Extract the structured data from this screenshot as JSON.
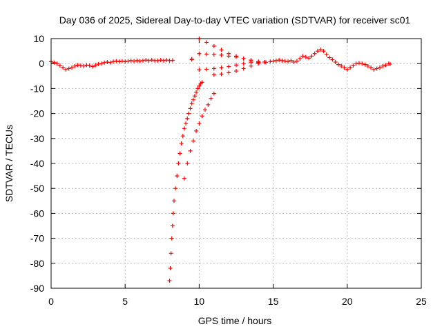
{
  "chart_data": {
    "type": "scatter",
    "title": "Day 036 of 2025, Sidereal Day-to-day VTEC variation (SDTVAR) for receiver sc01",
    "xlabel": "GPS time / hours",
    "ylabel": "SDTVAR / TECUs",
    "xlim": [
      0,
      25
    ],
    "ylim": [
      -90,
      10
    ],
    "x_ticks": [
      0,
      5,
      10,
      15,
      20,
      25
    ],
    "y_ticks": [
      10,
      0,
      -10,
      -20,
      -30,
      -40,
      -50,
      -60,
      -70,
      -80,
      -90
    ],
    "x_tick_labels": [
      "0",
      "5",
      "10",
      "15",
      "20",
      "25"
    ],
    "y_tick_labels": [
      "10",
      "0",
      "-10",
      "-20",
      "-30",
      "-40",
      "-50",
      "-60",
      "-70",
      "-80",
      "-90"
    ],
    "grid": true,
    "marker": "+",
    "marker_color": "#ff0000",
    "series": [
      {
        "name": "SDTVAR",
        "points": [
          [
            0.0,
            0.8
          ],
          [
            0.2,
            0.4
          ],
          [
            0.4,
            0.0
          ],
          [
            0.6,
            -0.8
          ],
          [
            0.8,
            -1.6
          ],
          [
            1.0,
            -2.4
          ],
          [
            1.2,
            -2.0
          ],
          [
            1.4,
            -1.6
          ],
          [
            1.6,
            -1.0
          ],
          [
            1.8,
            -0.6
          ],
          [
            2.0,
            -0.8
          ],
          [
            2.2,
            -1.0
          ],
          [
            2.4,
            -0.6
          ],
          [
            2.6,
            -0.8
          ],
          [
            2.8,
            -1.2
          ],
          [
            3.0,
            -0.6
          ],
          [
            3.2,
            -0.2
          ],
          [
            3.4,
            0.0
          ],
          [
            3.6,
            0.4
          ],
          [
            3.8,
            0.6
          ],
          [
            4.0,
            0.4
          ],
          [
            4.2,
            0.8
          ],
          [
            4.4,
            1.0
          ],
          [
            4.6,
            0.8
          ],
          [
            4.8,
            1.0
          ],
          [
            5.0,
            0.8
          ],
          [
            5.2,
            1.0
          ],
          [
            5.4,
            1.2
          ],
          [
            5.6,
            1.0
          ],
          [
            5.8,
            1.2
          ],
          [
            6.0,
            1.0
          ],
          [
            6.2,
            1.2
          ],
          [
            6.4,
            1.4
          ],
          [
            6.6,
            1.2
          ],
          [
            6.8,
            1.4
          ],
          [
            7.0,
            1.2
          ],
          [
            7.2,
            1.2
          ],
          [
            7.4,
            1.4
          ],
          [
            7.6,
            1.2
          ],
          [
            7.8,
            1.4
          ],
          [
            8.0,
            1.2
          ],
          [
            8.2,
            1.3
          ],
          [
            9.5,
            1.6
          ],
          [
            9.5,
            1.8
          ],
          [
            8.0,
            -87.0
          ],
          [
            8.05,
            -82.0
          ],
          [
            8.1,
            -76.0
          ],
          [
            8.15,
            -70.0
          ],
          [
            8.2,
            -65.0
          ],
          [
            8.25,
            -60.0
          ],
          [
            8.3,
            -55.0
          ],
          [
            8.4,
            -50.0
          ],
          [
            8.5,
            -45.0
          ],
          [
            8.6,
            -40.0
          ],
          [
            8.7,
            -36.0
          ],
          [
            8.8,
            -32.0
          ],
          [
            8.9,
            -29.0
          ],
          [
            9.0,
            -26.0
          ],
          [
            9.1,
            -24.0
          ],
          [
            9.2,
            -22.0
          ],
          [
            9.3,
            -20.0
          ],
          [
            9.4,
            -18.0
          ],
          [
            9.5,
            -16.0
          ],
          [
            9.6,
            -14.5
          ],
          [
            9.7,
            -13.0
          ],
          [
            9.8,
            -11.5
          ],
          [
            9.9,
            -10.0
          ],
          [
            10.0,
            -9.0
          ],
          [
            10.1,
            -8.0
          ],
          [
            10.2,
            -7.5
          ],
          [
            9.0,
            -46.0
          ],
          [
            9.2,
            -40.0
          ],
          [
            9.4,
            -35.0
          ],
          [
            9.6,
            -31.0
          ],
          [
            9.8,
            -27.0
          ],
          [
            10.0,
            -24.0
          ],
          [
            10.2,
            -21.0
          ],
          [
            10.4,
            -18.5
          ],
          [
            10.6,
            -16.5
          ],
          [
            10.8,
            -14.0
          ],
          [
            11.0,
            -12.0
          ],
          [
            10.0,
            10.0
          ],
          [
            10.5,
            8.5
          ],
          [
            11.0,
            7.0
          ],
          [
            11.5,
            5.5
          ],
          [
            12.0,
            4.0
          ],
          [
            12.5,
            3.0
          ],
          [
            13.0,
            2.0
          ],
          [
            13.5,
            1.0
          ],
          [
            14.0,
            0.5
          ],
          [
            10.0,
            4.0
          ],
          [
            10.5,
            3.8
          ],
          [
            11.0,
            3.6
          ],
          [
            11.5,
            3.4
          ],
          [
            12.0,
            3.0
          ],
          [
            12.5,
            2.6
          ],
          [
            13.0,
            2.0
          ],
          [
            13.5,
            1.4
          ],
          [
            14.0,
            0.8
          ],
          [
            10.0,
            -2.5
          ],
          [
            10.5,
            -2.3
          ],
          [
            11.0,
            -2.0
          ],
          [
            11.5,
            -1.6
          ],
          [
            12.0,
            -1.2
          ],
          [
            12.5,
            -0.6
          ],
          [
            13.0,
            0.0
          ],
          [
            13.5,
            0.4
          ],
          [
            14.0,
            0.6
          ],
          [
            11.0,
            -4.5
          ],
          [
            11.5,
            -4.2
          ],
          [
            12.0,
            -3.6
          ],
          [
            12.5,
            -3.0
          ],
          [
            13.0,
            -2.0
          ],
          [
            13.5,
            -1.0
          ],
          [
            14.0,
            0.0
          ],
          [
            14.5,
            0.5
          ],
          [
            14.0,
            0.4
          ],
          [
            14.4,
            0.6
          ],
          [
            14.8,
            0.8
          ],
          [
            15.0,
            1.0
          ],
          [
            15.2,
            1.2
          ],
          [
            15.4,
            1.4
          ],
          [
            15.6,
            1.2
          ],
          [
            15.8,
            1.0
          ],
          [
            16.0,
            0.8
          ],
          [
            16.2,
            1.2
          ],
          [
            16.4,
            0.6
          ],
          [
            16.6,
            1.0
          ],
          [
            16.8,
            2.0
          ],
          [
            17.0,
            3.0
          ],
          [
            17.2,
            2.6
          ],
          [
            17.4,
            2.2
          ],
          [
            17.6,
            3.0
          ],
          [
            17.8,
            4.0
          ],
          [
            18.0,
            5.0
          ],
          [
            18.2,
            5.6
          ],
          [
            18.4,
            5.0
          ],
          [
            18.6,
            3.6
          ],
          [
            18.8,
            2.4
          ],
          [
            19.0,
            1.6
          ],
          [
            19.2,
            0.6
          ],
          [
            19.4,
            -0.4
          ],
          [
            19.6,
            -1.0
          ],
          [
            19.8,
            -1.6
          ],
          [
            20.0,
            -2.4
          ],
          [
            20.2,
            -1.6
          ],
          [
            20.4,
            -0.8
          ],
          [
            20.6,
            0.0
          ],
          [
            20.8,
            0.2
          ],
          [
            21.0,
            0.0
          ],
          [
            21.2,
            -0.4
          ],
          [
            21.4,
            -1.0
          ],
          [
            21.6,
            -1.6
          ],
          [
            21.8,
            -2.4
          ],
          [
            22.0,
            -2.0
          ],
          [
            22.2,
            -1.6
          ],
          [
            22.4,
            -1.0
          ],
          [
            22.6,
            -0.6
          ],
          [
            22.8,
            0.0
          ],
          [
            22.9,
            -0.2
          ]
        ]
      }
    ]
  }
}
